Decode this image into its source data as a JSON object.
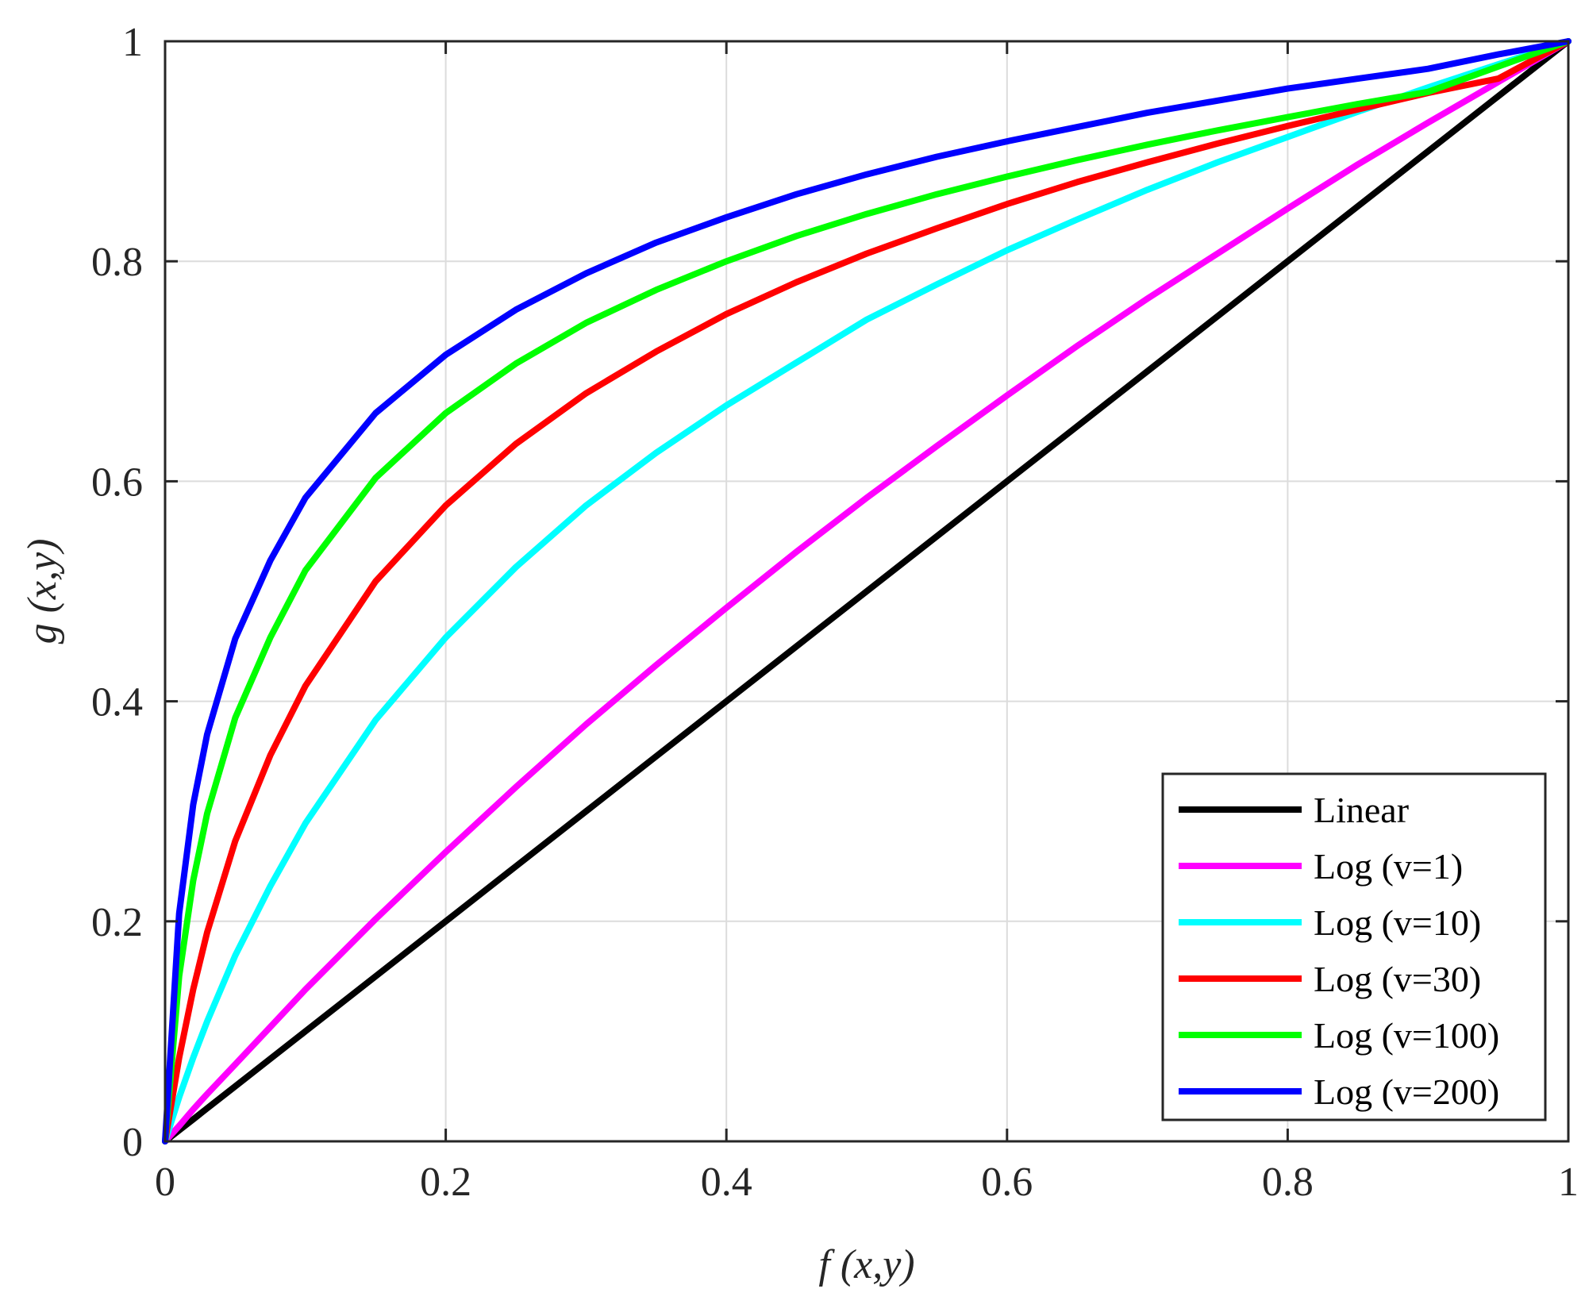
{
  "chart_data": {
    "type": "line",
    "title": "",
    "xlabel": "f (x,y)",
    "ylabel": "g (x,y)",
    "xlim": [
      0,
      1
    ],
    "ylim": [
      0,
      1
    ],
    "xticks": [
      0,
      0.2,
      0.4,
      0.6,
      0.8,
      1
    ],
    "yticks": [
      0,
      0.2,
      0.4,
      0.6,
      0.8,
      1
    ],
    "xtick_labels": [
      "0",
      "0.2",
      "0.4",
      "0.6",
      "0.8",
      "1"
    ],
    "ytick_labels": [
      "0",
      "0.2",
      "0.4",
      "0.6",
      "0.8",
      "1"
    ],
    "grid": true,
    "legend_position": "bottom-right",
    "x": [
      0,
      0.01,
      0.02,
      0.03,
      0.05,
      0.075,
      0.1,
      0.15,
      0.2,
      0.25,
      0.3,
      0.35,
      0.4,
      0.45,
      0.5,
      0.55,
      0.6,
      0.65,
      0.7,
      0.75,
      0.8,
      0.85,
      0.9,
      0.95,
      1
    ],
    "series": [
      {
        "name": "Linear",
        "color": "#000000",
        "values": [
          0,
          0.01,
          0.02,
          0.03,
          0.05,
          0.075,
          0.1,
          0.15,
          0.2,
          0.25,
          0.3,
          0.35,
          0.4,
          0.45,
          0.5,
          0.55,
          0.6,
          0.65,
          0.7,
          0.75,
          0.8,
          0.85,
          0.9,
          0.95,
          1
        ]
      },
      {
        "name": "Log (v=1)",
        "color": "#ff00ff",
        "values": [
          0,
          0.014,
          0.029,
          0.043,
          0.07,
          0.104,
          0.138,
          0.202,
          0.263,
          0.322,
          0.379,
          0.433,
          0.485,
          0.536,
          0.585,
          0.632,
          0.678,
          0.723,
          0.766,
          0.807,
          0.848,
          0.888,
          0.926,
          0.963,
          1
        ]
      },
      {
        "name": "Log (v=10)",
        "color": "#00ffff",
        "values": [
          0,
          0.04,
          0.076,
          0.109,
          0.169,
          0.232,
          0.289,
          0.383,
          0.458,
          0.522,
          0.578,
          0.626,
          0.669,
          0.708,
          0.747,
          0.779,
          0.81,
          0.838,
          0.865,
          0.89,
          0.913,
          0.936,
          0.958,
          0.979,
          1
        ]
      },
      {
        "name": "Log (v=30)",
        "color": "#ff0000",
        "values": [
          0,
          0.076,
          0.138,
          0.19,
          0.273,
          0.351,
          0.414,
          0.509,
          0.578,
          0.634,
          0.68,
          0.718,
          0.752,
          0.781,
          0.807,
          0.83,
          0.852,
          0.872,
          0.89,
          0.907,
          0.923,
          0.938,
          0.953,
          0.966,
          1
        ]
      },
      {
        "name": "Log (v=100)",
        "color": "#00ff00",
        "values": [
          0,
          0.15,
          0.237,
          0.298,
          0.385,
          0.458,
          0.519,
          0.603,
          0.662,
          0.707,
          0.744,
          0.774,
          0.8,
          0.823,
          0.843,
          0.861,
          0.877,
          0.892,
          0.906,
          0.919,
          0.931,
          0.943,
          0.954,
          0.977,
          1
        ]
      },
      {
        "name": "Log (v=200)",
        "color": "#0000ff",
        "values": [
          0,
          0.207,
          0.306,
          0.37,
          0.457,
          0.528,
          0.585,
          0.662,
          0.715,
          0.756,
          0.789,
          0.817,
          0.84,
          0.861,
          0.879,
          0.895,
          0.909,
          0.922,
          0.935,
          0.946,
          0.957,
          0.966,
          0.975,
          0.988,
          1
        ]
      }
    ]
  }
}
